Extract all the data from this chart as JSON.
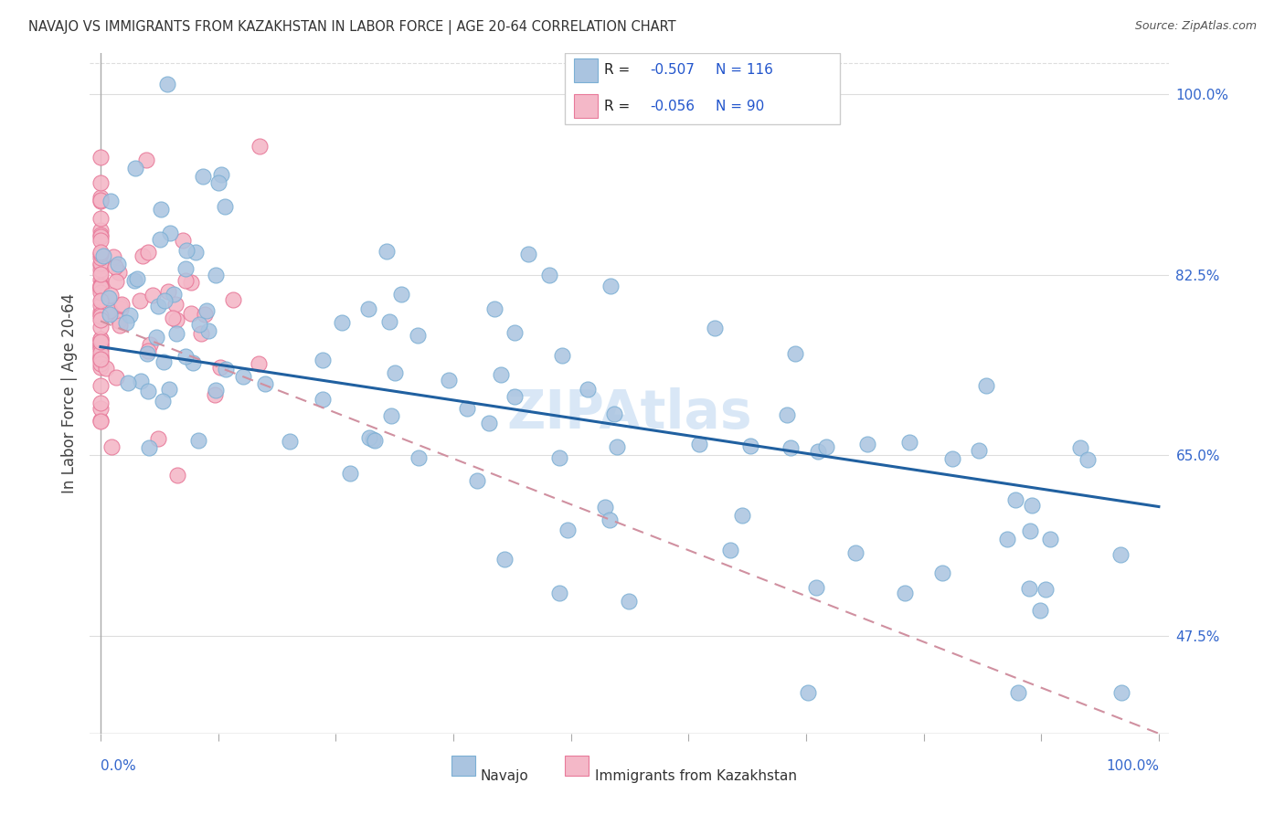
{
  "title": "NAVAJO VS IMMIGRANTS FROM KAZAKHSTAN IN LABOR FORCE | AGE 20-64 CORRELATION CHART",
  "source": "Source: ZipAtlas.com",
  "ylabel": "In Labor Force | Age 20-64",
  "ytick_values": [
    0.475,
    0.65,
    0.825,
    1.0
  ],
  "ytick_labels": [
    "47.5%",
    "65.0%",
    "82.5%",
    "100.0%"
  ],
  "xtick_left": "0.0%",
  "xtick_right": "100.0%",
  "legend_navajo_R": "-0.507",
  "legend_navajo_N": "116",
  "legend_immig_R": "-0.056",
  "legend_immig_N": "90",
  "navajo_color": "#aac4e0",
  "navajo_edge": "#7bafd4",
  "immig_color": "#f4b8c8",
  "immig_edge": "#e87a9a",
  "trendline_navajo_color": "#2060a0",
  "trendline_immig_color": "#d090a0",
  "watermark": "ZIPAtlas",
  "watermark_color": "#c0d8f0",
  "ymin": 0.38,
  "ymax": 1.04,
  "xmin": -0.01,
  "xmax": 1.01
}
